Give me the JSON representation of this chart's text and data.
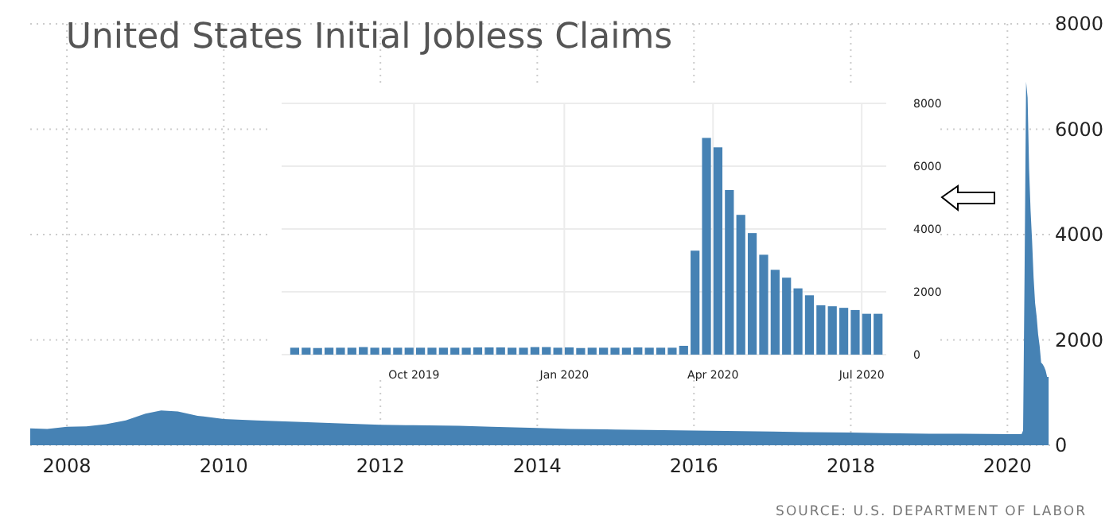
{
  "chart_data": [
    {
      "type": "area",
      "title": "United States Initial Jobless Claims",
      "color": "#4682b4",
      "x": [
        "2007-07-14",
        "2007-10-01",
        "2008-01-01",
        "2008-04-01",
        "2008-07-01",
        "2008-10-01",
        "2009-01-01",
        "2009-03-15",
        "2009-06-01",
        "2009-09-01",
        "2010-01-01",
        "2010-06-01",
        "2011-01-01",
        "2011-06-01",
        "2012-01-01",
        "2012-06-01",
        "2013-01-01",
        "2013-06-01",
        "2014-01-01",
        "2014-06-01",
        "2015-01-01",
        "2015-06-01",
        "2016-01-01",
        "2016-06-01",
        "2017-01-01",
        "2017-06-01",
        "2018-01-01",
        "2018-06-01",
        "2019-01-01",
        "2019-06-01",
        "2020-03-07",
        "2020-03-14",
        "2020-03-21",
        "2020-03-28",
        "2020-04-04",
        "2020-04-11",
        "2020-04-18",
        "2020-04-25",
        "2020-05-02",
        "2020-05-09",
        "2020-05-16",
        "2020-05-23",
        "2020-05-30",
        "2020-06-06",
        "2020-06-13",
        "2020-06-20",
        "2020-06-27",
        "2020-07-04",
        "2020-07-11"
      ],
      "values": [
        320,
        310,
        350,
        360,
        400,
        470,
        600,
        660,
        640,
        560,
        500,
        470,
        440,
        420,
        390,
        380,
        370,
        350,
        330,
        310,
        300,
        290,
        280,
        270,
        260,
        250,
        240,
        230,
        220,
        220,
        210,
        280,
        3310,
        6900,
        6600,
        5240,
        4450,
        3870,
        3180,
        2700,
        2450,
        2110,
        1890,
        1570,
        1540,
        1490,
        1420,
        1300,
        1300
      ],
      "xlim": [
        "2007-07-14",
        "2020-07-18"
      ],
      "xticks": [
        "2008",
        "2010",
        "2012",
        "2014",
        "2016",
        "2018",
        "2020"
      ],
      "ylim": [
        0,
        8000
      ],
      "yticks": [
        0,
        2000,
        4000,
        6000,
        8000
      ],
      "grid": true,
      "annotations": [
        "SOURCE: U.S. DEPARTMENT OF LABOR"
      ]
    },
    {
      "type": "bar",
      "color": "#4682b4",
      "x": [
        "2019-07-20",
        "2019-07-27",
        "2019-08-03",
        "2019-08-10",
        "2019-08-17",
        "2019-08-24",
        "2019-08-31",
        "2019-09-07",
        "2019-09-14",
        "2019-09-21",
        "2019-09-28",
        "2019-10-05",
        "2019-10-12",
        "2019-10-19",
        "2019-10-26",
        "2019-11-02",
        "2019-11-09",
        "2019-11-16",
        "2019-11-23",
        "2019-11-30",
        "2019-12-07",
        "2019-12-14",
        "2019-12-21",
        "2019-12-28",
        "2020-01-04",
        "2020-01-11",
        "2020-01-18",
        "2020-01-25",
        "2020-02-01",
        "2020-02-08",
        "2020-02-15",
        "2020-02-22",
        "2020-02-29",
        "2020-03-07",
        "2020-03-14",
        "2020-03-21",
        "2020-03-28",
        "2020-04-04",
        "2020-04-11",
        "2020-04-18",
        "2020-04-25",
        "2020-05-02",
        "2020-05-09",
        "2020-05-16",
        "2020-05-23",
        "2020-05-30",
        "2020-06-06",
        "2020-06-13",
        "2020-06-20",
        "2020-06-27",
        "2020-07-04",
        "2020-07-11"
      ],
      "values": [
        220,
        220,
        210,
        220,
        220,
        220,
        240,
        220,
        220,
        220,
        220,
        220,
        220,
        220,
        220,
        220,
        230,
        230,
        230,
        220,
        220,
        240,
        240,
        220,
        230,
        210,
        220,
        220,
        220,
        220,
        230,
        220,
        220,
        220,
        280,
        3310,
        6900,
        6600,
        5240,
        4450,
        3870,
        3180,
        2700,
        2450,
        2110,
        1890,
        1570,
        1540,
        1490,
        1420,
        1300,
        1300
      ],
      "xlim": [
        "2019-07-12",
        "2020-07-16"
      ],
      "xticks": [
        {
          "value": "2019-10-01",
          "label": "Oct 2019"
        },
        {
          "value": "2020-01-01",
          "label": "Jan 2020"
        },
        {
          "value": "2020-04-01",
          "label": "Apr 2020"
        },
        {
          "value": "2020-07-01",
          "label": "Jul 2020"
        }
      ],
      "ylim": [
        0,
        8000
      ],
      "yticks": [
        0,
        2000,
        4000,
        6000,
        8000
      ],
      "grid": true
    }
  ]
}
